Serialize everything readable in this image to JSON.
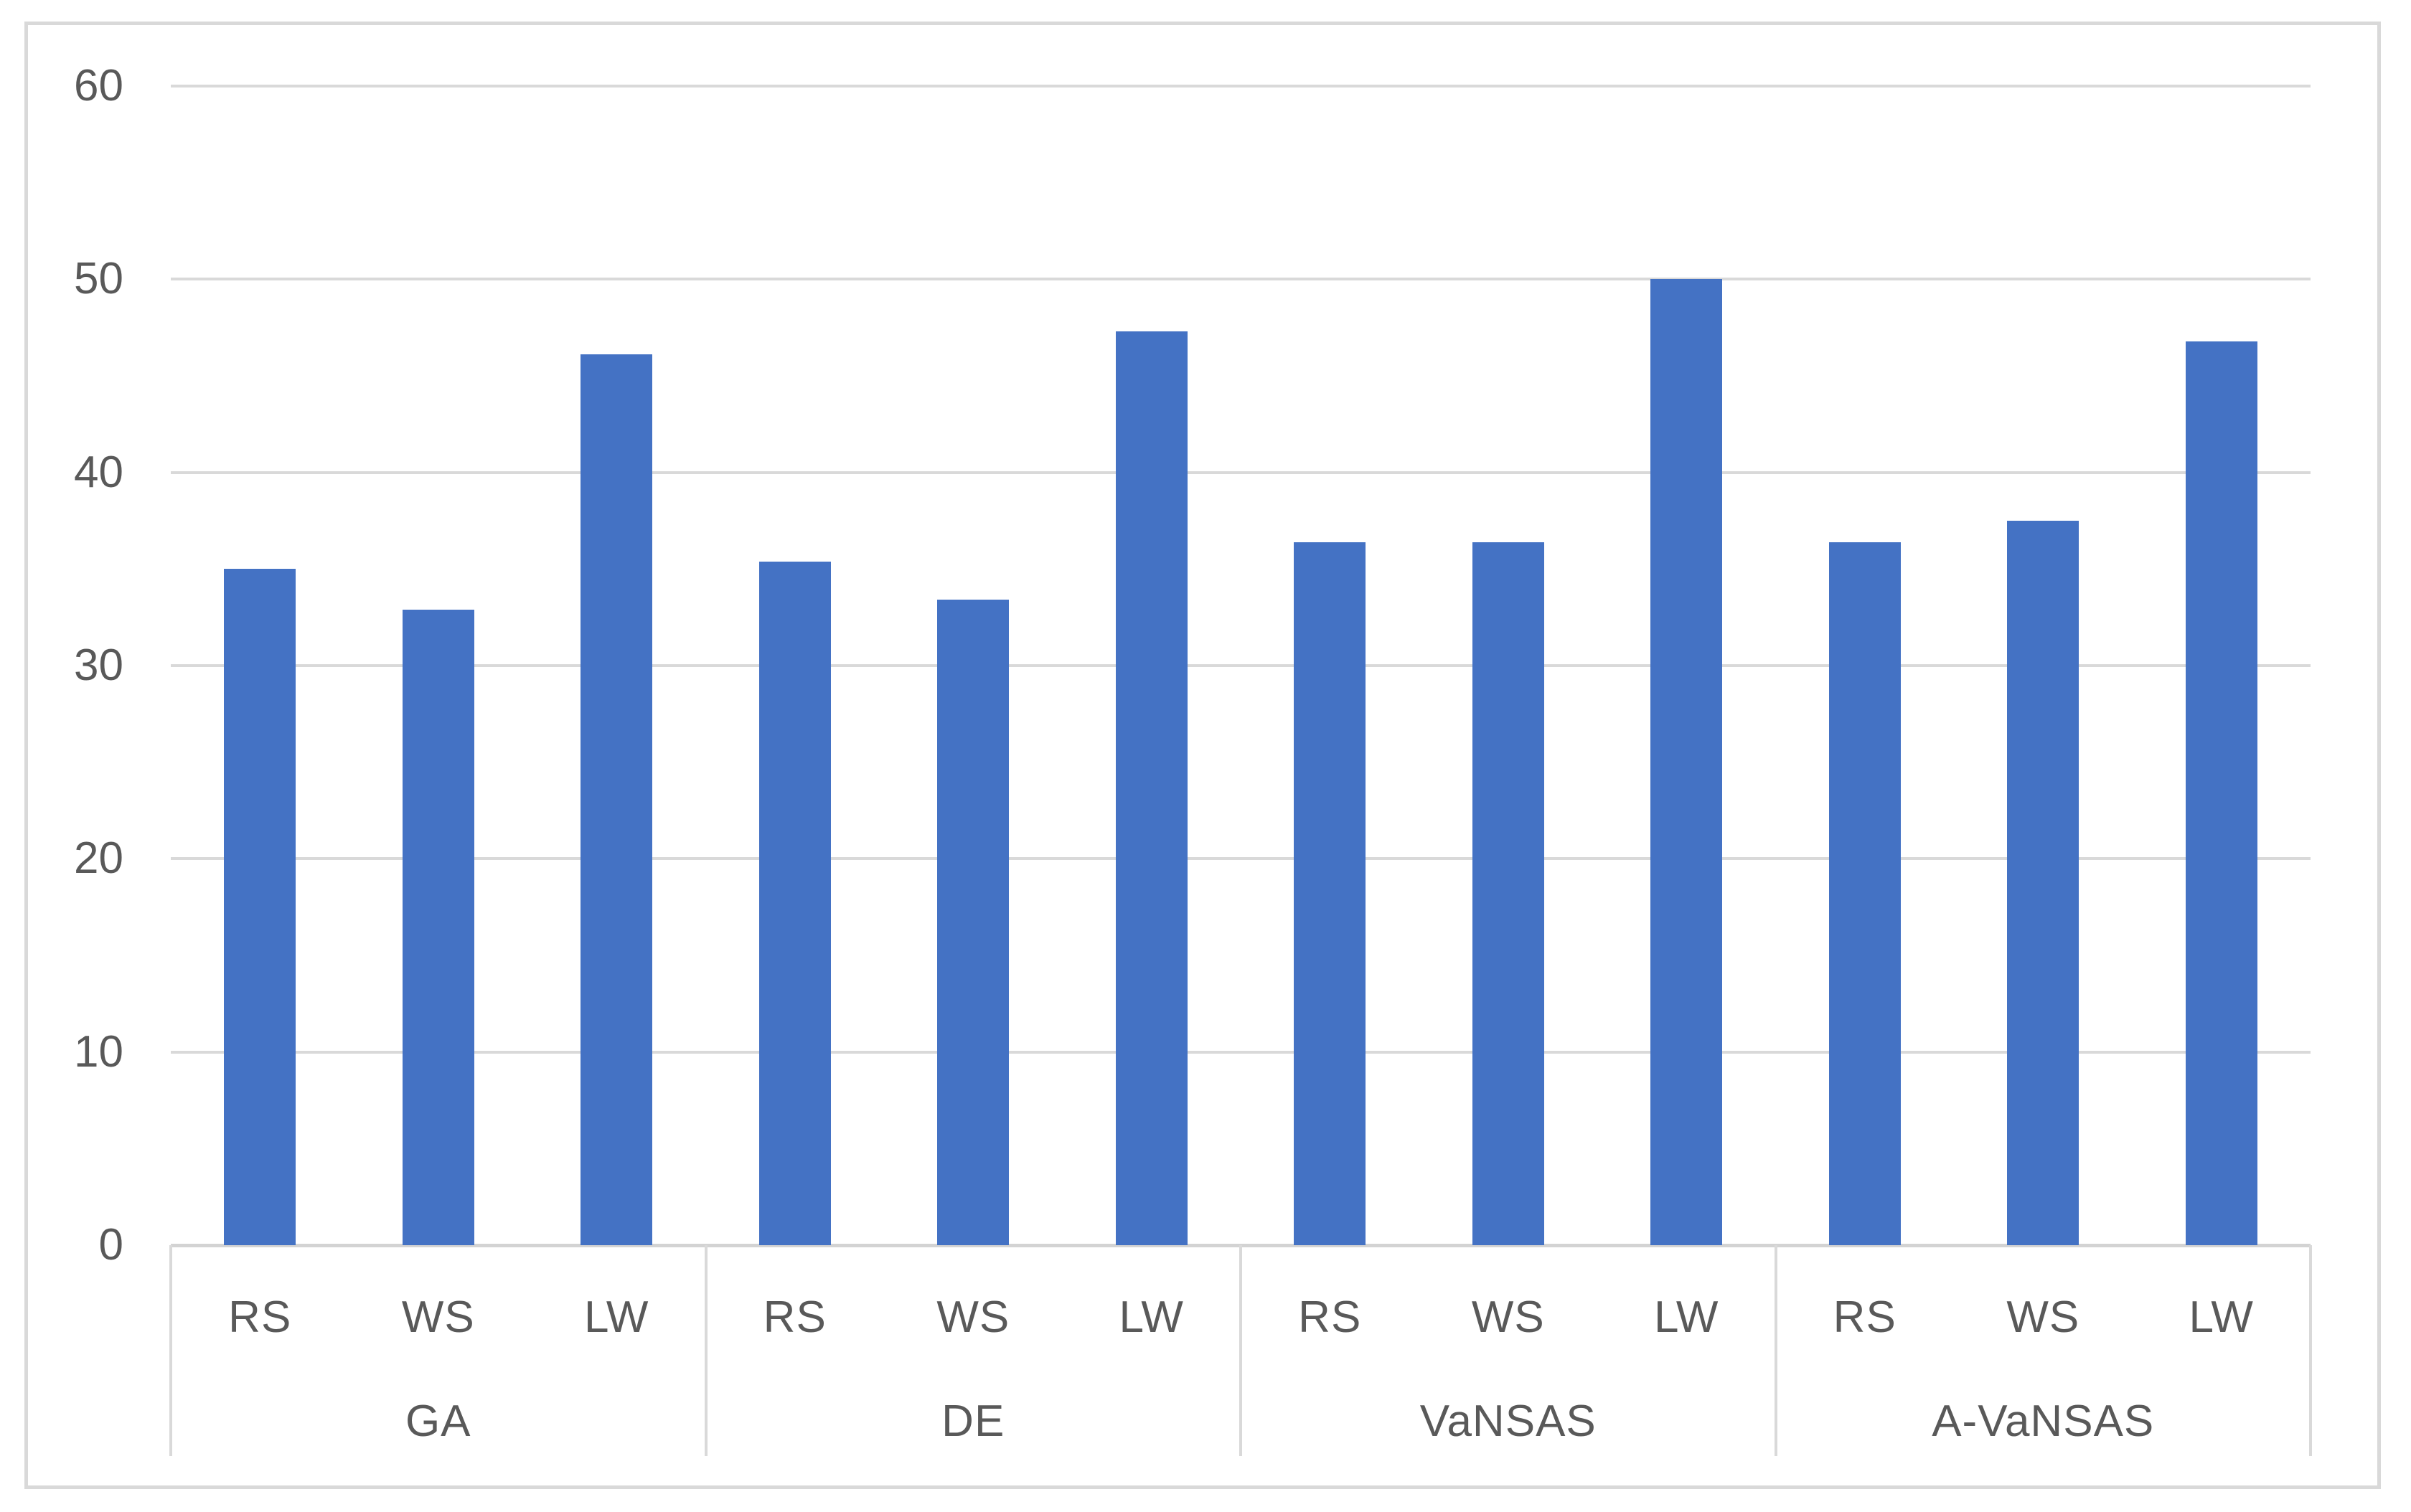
{
  "figure": {
    "background_color": "#ffffff",
    "border_color": "#D9D9D9"
  },
  "chart_data": {
    "type": "bar",
    "title": "",
    "xlabel": "",
    "ylabel": "",
    "ylim": [
      0,
      60
    ],
    "yticks": [
      0,
      10,
      20,
      30,
      40,
      50,
      60
    ],
    "grid": true,
    "legend": "none",
    "bar_color": "#4472C4",
    "gridline_color": "#D9D9D9",
    "axis_line_color": "#D3D3D3",
    "text_color": "#595959",
    "categories_per_group": [
      "RS",
      "WS",
      "LW"
    ],
    "groups": [
      {
        "label": "GA",
        "categories": [
          "RS",
          "WS",
          "LW"
        ],
        "values": [
          35.0,
          32.9,
          46.1
        ]
      },
      {
        "label": "DE",
        "categories": [
          "RS",
          "WS",
          "LW"
        ],
        "values": [
          35.4,
          33.4,
          47.3
        ]
      },
      {
        "label": "VaNSAS",
        "categories": [
          "RS",
          "WS",
          "LW"
        ],
        "values": [
          36.4,
          36.4,
          50.0
        ]
      },
      {
        "label": "A-VaNSAS",
        "categories": [
          "RS",
          "WS",
          "LW"
        ],
        "values": [
          36.4,
          37.5,
          46.8
        ]
      }
    ]
  }
}
